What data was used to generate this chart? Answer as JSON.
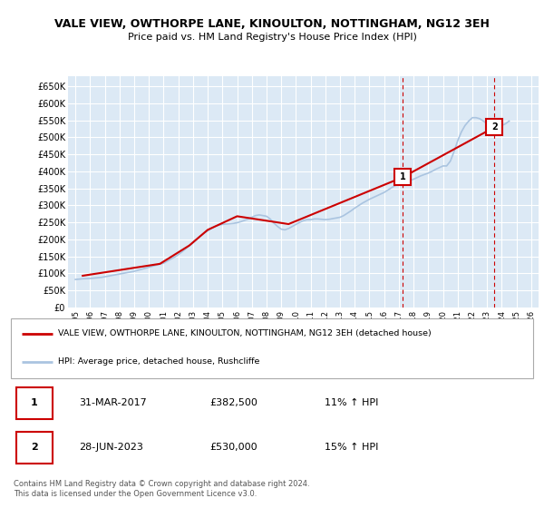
{
  "title_line1": "VALE VIEW, OWTHORPE LANE, KINOULTON, NOTTINGHAM, NG12 3EH",
  "title_line2": "Price paid vs. HM Land Registry's House Price Index (HPI)",
  "ylabel_ticks": [
    "£0",
    "£50K",
    "£100K",
    "£150K",
    "£200K",
    "£250K",
    "£300K",
    "£350K",
    "£400K",
    "£450K",
    "£500K",
    "£550K",
    "£600K",
    "£650K"
  ],
  "ytick_values": [
    0,
    50000,
    100000,
    150000,
    200000,
    250000,
    300000,
    350000,
    400000,
    450000,
    500000,
    550000,
    600000,
    650000
  ],
  "ylim": [
    0,
    680000
  ],
  "xlim_start": 1994.5,
  "xlim_end": 2026.5,
  "xticks": [
    1995,
    1996,
    1997,
    1998,
    1999,
    2000,
    2001,
    2002,
    2003,
    2004,
    2005,
    2006,
    2007,
    2008,
    2009,
    2010,
    2011,
    2012,
    2013,
    2014,
    2015,
    2016,
    2017,
    2018,
    2019,
    2020,
    2021,
    2022,
    2023,
    2024,
    2025,
    2026
  ],
  "hpi_color": "#aac4e0",
  "price_color": "#cc0000",
  "dashed_line_color": "#cc0000",
  "plot_bg_color": "#dce9f5",
  "grid_color": "#ffffff",
  "marker1_x": 2017.25,
  "marker1_y": 382500,
  "marker2_x": 2023.5,
  "marker2_y": 530000,
  "marker1_label": "1",
  "marker2_label": "2",
  "vline1_x": 2017.25,
  "vline2_x": 2023.5,
  "legend_price_label": "VALE VIEW, OWTHORPE LANE, KINOULTON, NOTTINGHAM, NG12 3EH (detached house)",
  "legend_hpi_label": "HPI: Average price, detached house, Rushcliffe",
  "ann1_date": "31-MAR-2017",
  "ann1_price": "£382,500",
  "ann1_hpi": "11% ↑ HPI",
  "ann2_date": "28-JUN-2023",
  "ann2_price": "£530,000",
  "ann2_hpi": "15% ↑ HPI",
  "footnote": "Contains HM Land Registry data © Crown copyright and database right 2024.\nThis data is licensed under the Open Government Licence v3.0.",
  "hpi_data": {
    "years": [
      1995.0,
      1995.25,
      1995.5,
      1995.75,
      1996.0,
      1996.25,
      1996.5,
      1996.75,
      1997.0,
      1997.25,
      1997.5,
      1997.75,
      1998.0,
      1998.25,
      1998.5,
      1998.75,
      1999.0,
      1999.25,
      1999.5,
      1999.75,
      2000.0,
      2000.25,
      2000.5,
      2000.75,
      2001.0,
      2001.25,
      2001.5,
      2001.75,
      2002.0,
      2002.25,
      2002.5,
      2002.75,
      2003.0,
      2003.25,
      2003.5,
      2003.75,
      2004.0,
      2004.25,
      2004.5,
      2004.75,
      2005.0,
      2005.25,
      2005.5,
      2005.75,
      2006.0,
      2006.25,
      2006.5,
      2006.75,
      2007.0,
      2007.25,
      2007.5,
      2007.75,
      2008.0,
      2008.25,
      2008.5,
      2008.75,
      2009.0,
      2009.25,
      2009.5,
      2009.75,
      2010.0,
      2010.25,
      2010.5,
      2010.75,
      2011.0,
      2011.25,
      2011.5,
      2011.75,
      2012.0,
      2012.25,
      2012.5,
      2012.75,
      2013.0,
      2013.25,
      2013.5,
      2013.75,
      2014.0,
      2014.25,
      2014.5,
      2014.75,
      2015.0,
      2015.25,
      2015.5,
      2015.75,
      2016.0,
      2016.25,
      2016.5,
      2016.75,
      2017.0,
      2017.25,
      2017.5,
      2017.75,
      2018.0,
      2018.25,
      2018.5,
      2018.75,
      2019.0,
      2019.25,
      2019.5,
      2019.75,
      2020.0,
      2020.25,
      2020.5,
      2020.75,
      2021.0,
      2021.25,
      2021.5,
      2021.75,
      2022.0,
      2022.25,
      2022.5,
      2022.75,
      2023.0,
      2023.25,
      2023.5,
      2023.75,
      2024.0,
      2024.25,
      2024.5
    ],
    "values": [
      82000,
      83000,
      84000,
      84500,
      85000,
      86000,
      87000,
      88000,
      90000,
      92000,
      94000,
      96000,
      98000,
      100000,
      102000,
      104000,
      106000,
      109000,
      112000,
      115000,
      118000,
      121000,
      124000,
      127000,
      130000,
      136000,
      142000,
      148000,
      155000,
      163000,
      172000,
      181000,
      190000,
      200000,
      210000,
      218000,
      225000,
      232000,
      238000,
      242000,
      244000,
      245000,
      246000,
      247000,
      249000,
      252000,
      256000,
      260000,
      265000,
      270000,
      272000,
      270000,
      268000,
      260000,
      248000,
      238000,
      230000,
      228000,
      232000,
      238000,
      244000,
      250000,
      255000,
      258000,
      258000,
      260000,
      260000,
      259000,
      258000,
      259000,
      261000,
      263000,
      265000,
      270000,
      277000,
      284000,
      292000,
      299000,
      306000,
      312000,
      318000,
      323000,
      328000,
      333000,
      338000,
      345000,
      352000,
      358000,
      362000,
      365000,
      369000,
      373000,
      377000,
      382000,
      387000,
      391000,
      395000,
      400000,
      406000,
      411000,
      416000,
      416000,
      430000,
      458000,
      490000,
      516000,
      535000,
      548000,
      558000,
      558000,
      555000,
      548000,
      540000,
      532000,
      528000,
      530000,
      535000,
      540000,
      548000
    ]
  },
  "price_data": {
    "years": [
      1995.5,
      2000.75,
      2002.75,
      2004.0,
      2006.0,
      2009.5,
      2017.25,
      2023.5
    ],
    "values": [
      93000,
      128000,
      182000,
      228000,
      268000,
      245000,
      382500,
      530000
    ]
  }
}
